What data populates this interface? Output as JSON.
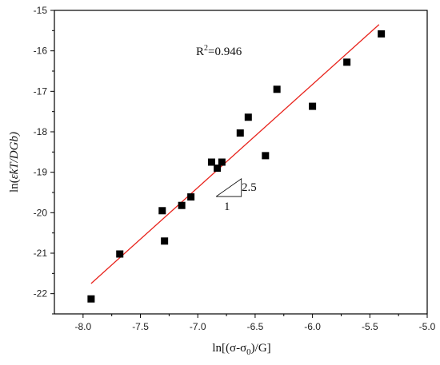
{
  "chart_data": {
    "type": "scatter",
    "xlabel": "ln[(σ-σ",
    "xlabel_sub": "0",
    "xlabel_tail": ")/G]",
    "ylabel": "ln(",
    "ylabel_symbol": "ε̇",
    "ylabel_tail": "kT/DGb)",
    "xlim": [
      -8.25,
      -5.0
    ],
    "ylim": [
      -22.5,
      -15.0
    ],
    "xticks": [
      -8.0,
      -7.5,
      -7.0,
      -6.5,
      -6.0,
      -5.5,
      -5.0
    ],
    "xtick_labels": [
      "-8.0",
      "-7.5",
      "-7.0",
      "-6.5",
      "-6.0",
      "-5.5",
      "-5.0"
    ],
    "yticks": [
      -22,
      -21,
      -20,
      -19,
      -18,
      -17,
      -16,
      -15
    ],
    "ytick_labels": [
      "-22",
      "-21",
      "-20",
      "-19",
      "-18",
      "-17",
      "-16",
      "-15"
    ],
    "grid": false,
    "points": [
      {
        "x": -7.93,
        "y": -22.13
      },
      {
        "x": -7.68,
        "y": -21.02
      },
      {
        "x": -7.31,
        "y": -19.95
      },
      {
        "x": -7.29,
        "y": -20.7
      },
      {
        "x": -7.14,
        "y": -19.82
      },
      {
        "x": -7.06,
        "y": -19.61
      },
      {
        "x": -6.88,
        "y": -18.75
      },
      {
        "x": -6.83,
        "y": -18.9
      },
      {
        "x": -6.79,
        "y": -18.75
      },
      {
        "x": -6.63,
        "y": -18.03
      },
      {
        "x": -6.56,
        "y": -17.64
      },
      {
        "x": -6.41,
        "y": -18.59
      },
      {
        "x": -6.31,
        "y": -16.95
      },
      {
        "x": -6.0,
        "y": -17.37
      },
      {
        "x": -5.7,
        "y": -16.28
      },
      {
        "x": -5.4,
        "y": -15.58
      }
    ],
    "fit_line": {
      "x": [
        -7.93,
        -5.42
      ],
      "y": [
        -21.75,
        -15.35
      ],
      "color": "#e8231c"
    },
    "r2_label": "R",
    "r2_sup": "2",
    "r2_value": "=0.946",
    "slope_label": "2.5",
    "run_label": "1",
    "slope_triangle": {
      "x0": -6.84,
      "x1": -6.62,
      "y0": -19.6,
      "y1": -19.16
    }
  }
}
